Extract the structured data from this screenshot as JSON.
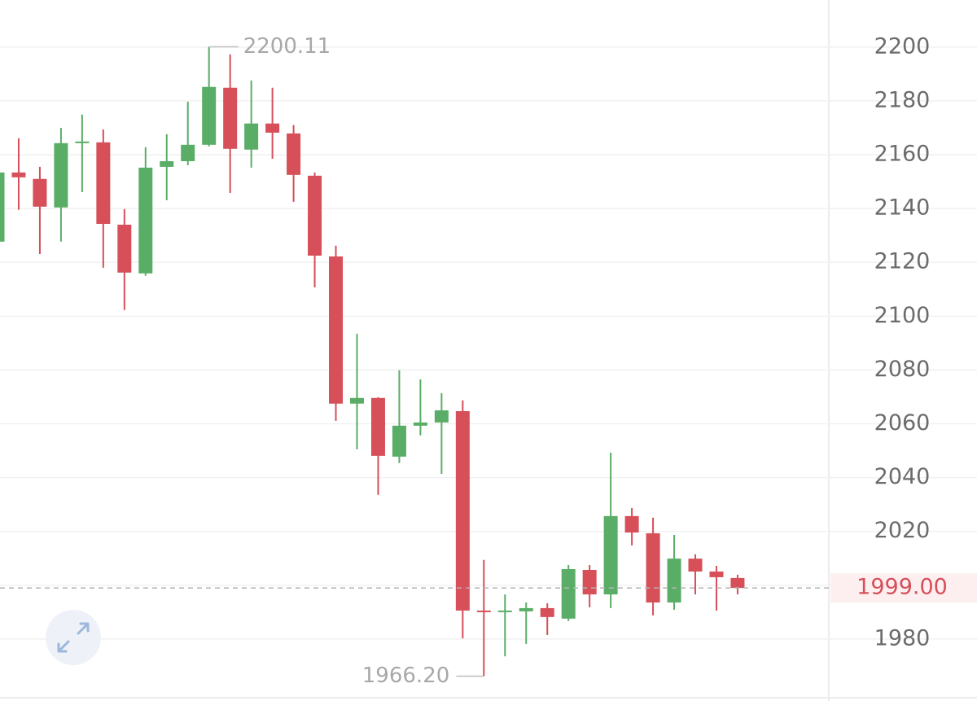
{
  "chart_data": {
    "type": "candlestick",
    "open": [
      2127.7,
      2153.4,
      2151.0,
      2140.4,
      2164.6,
      2164.6,
      2134.0,
      2115.9,
      2155.5,
      2157.6,
      2163.7,
      2184.9,
      2161.9,
      2171.6,
      2167.9,
      2152.2,
      2122.2,
      2067.5,
      2069.6,
      2047.8,
      2059.3,
      2060.5,
      2064.7,
      1990.6,
      1990.3,
      1990.3,
      1991.5,
      1987.6,
      2005.7,
      1996.6,
      2025.7,
      2019.3,
      1993.6,
      2009.9,
      2005.1,
      2002.7
    ],
    "high": [
      2153.4,
      2166.1,
      2155.5,
      2170.0,
      2174.9,
      2169.4,
      2139.8,
      2162.8,
      2167.6,
      2179.7,
      2200.11,
      2197.3,
      2187.6,
      2184.9,
      2171.0,
      2153.4,
      2126.2,
      2093.5,
      2069.9,
      2079.9,
      2076.5,
      2071.4,
      2068.7,
      2009.4,
      1996.6,
      1993.6,
      1993.3,
      2007.5,
      2007.5,
      2049.3,
      2028.7,
      2025.1,
      2018.7,
      2011.5,
      2007.2,
      2003.9
    ],
    "low": [
      2127.7,
      2139.5,
      2123.1,
      2127.7,
      2146.1,
      2118.0,
      2102.3,
      2115.0,
      2143.1,
      2156.1,
      2163.1,
      2145.8,
      2155.2,
      2158.5,
      2142.5,
      2110.7,
      2061.1,
      2050.5,
      2033.6,
      2045.4,
      2055.7,
      2041.4,
      1980.3,
      1966.2,
      1973.6,
      1978.2,
      1981.5,
      1986.7,
      1991.8,
      1991.5,
      2014.8,
      1988.8,
      1990.9,
      1996.6,
      1990.6,
      1996.6
    ],
    "close": [
      2153.4,
      2151.6,
      2140.7,
      2164.3,
      2164.9,
      2134.3,
      2116.2,
      2155.2,
      2157.6,
      2163.7,
      2185.2,
      2162.2,
      2171.6,
      2168.2,
      2152.5,
      2122.5,
      2067.5,
      2069.6,
      2048.1,
      2059.3,
      2060.5,
      2065.0,
      1990.6,
      1990.3,
      1990.6,
      1991.5,
      1988.2,
      2006.0,
      1996.6,
      2025.7,
      2019.6,
      1993.6,
      2009.9,
      2005.1,
      2003.0,
      1999.0
    ],
    "up_color": "#5aad66",
    "down_color": "#d64f59",
    "ylim": [
      1958.8,
      2217.5
    ],
    "yticks": [
      1980,
      2000,
      2020,
      2040,
      2060,
      2080,
      2100,
      2120,
      2140,
      2160,
      2180,
      2200
    ],
    "grid": true,
    "high_annotation": 2200.11,
    "low_annotation": {
      "value": 1966.2,
      "label": "1966.20"
    },
    "last_price": {
      "value": 1999,
      "label": "1999.00"
    }
  }
}
